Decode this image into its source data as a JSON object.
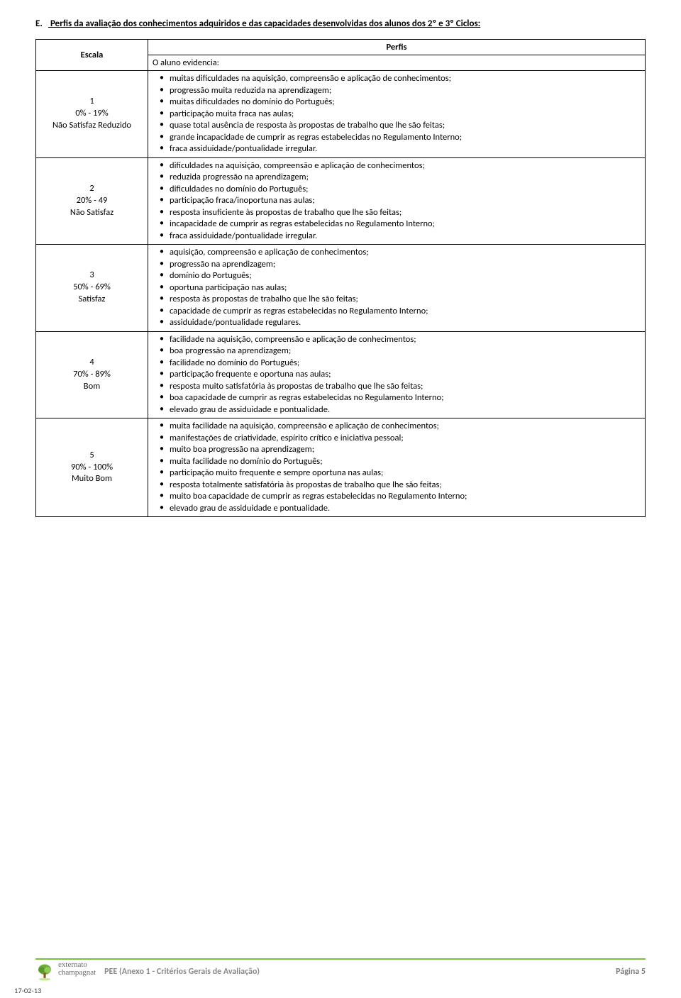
{
  "heading": {
    "marker": "E.",
    "text": "Perfis da avaliação dos conhecimentos adquiridos e das capacidades desenvolvidas  dos alunos dos 2º e 3º Ciclos:"
  },
  "table": {
    "header_escala": "Escala",
    "header_perfis": "Perfis",
    "lead": "O aluno evidencia:",
    "rows": [
      {
        "num": "1",
        "range": "0% - 19%",
        "label": "Não Satisfaz Reduzido",
        "items": [
          "muitas dificuldades na aquisição, compreensão e aplicação de conhecimentos;",
          "progressão muita reduzida na aprendizagem;",
          "muitas dificuldades no domínio do Português;",
          "participação muita fraca nas aulas;",
          "quase total ausência de resposta às propostas de trabalho que lhe são feitas;",
          "grande incapacidade de cumprir as regras estabelecidas no Regulamento Interno;",
          "fraca assiduidade/pontualidade irregular."
        ]
      },
      {
        "num": "2",
        "range": "20% - 49",
        "label": "Não Satisfaz",
        "items": [
          "dificuldades na aquisição, compreensão e aplicação de conhecimentos;",
          "reduzida progressão na aprendizagem;",
          "dificuldades no domínio do Português;",
          "participação fraca/inoportuna nas aulas;",
          "resposta insuficiente às propostas de trabalho que lhe são feitas;",
          "incapacidade de cumprir as regras estabelecidas no Regulamento Interno;",
          "fraca assiduidade/pontualidade irregular."
        ]
      },
      {
        "num": "3",
        "range": "50% - 69%",
        "label": "Satisfaz",
        "items": [
          "aquisição, compreensão e aplicação de conhecimentos;",
          "progressão na aprendizagem;",
          "domínio do Português;",
          "oportuna participação nas aulas;",
          "resposta às propostas de trabalho que lhe são feitas;",
          "capacidade de cumprir as regras estabelecidas no Regulamento Interno;",
          "assiduidade/pontualidade regulares."
        ]
      },
      {
        "num": "4",
        "range": "70% - 89%",
        "label": "Bom",
        "items": [
          "facilidade na aquisição, compreensão e aplicação de conhecimentos;",
          "boa progressão na aprendizagem;",
          "facilidade no domínio do Português;",
          "participação frequente e oportuna nas aulas;",
          "resposta muito satisfatória às propostas de trabalho que lhe são feitas;",
          "boa capacidade de cumprir as regras estabelecidas no Regulamento Interno;",
          "elevado grau de assiduidade e pontualidade."
        ]
      },
      {
        "num": "5",
        "range": "90% - 100%",
        "label": "Muito Bom",
        "items": [
          "muita facilidade na aquisição, compreensão e aplicação de conhecimentos;",
          "manifestações de criatividade, espírito crítico e iniciativa pessoal;",
          "muito boa progressão na aprendizagem;",
          "muita facilidade no domínio do Português;",
          "participação muito frequente e sempre oportuna nas aulas;",
          "resposta totalmente satisfatória às propostas de trabalho que lhe são feitas;",
          "muito boa capacidade de cumprir as regras estabelecidas no Regulamento Interno;",
          "elevado grau de assiduidade e pontualidade."
        ]
      }
    ]
  },
  "footer": {
    "brand_line1": "externato",
    "brand_line2": "champagnat",
    "doc": "PEE (Anexo 1 - Critérios Gerais de Avaliação)",
    "page": "Página 5",
    "date": "17-02-13"
  },
  "colors": {
    "accent": "#7bbf3f",
    "footer_text": "#8a8a8a"
  }
}
